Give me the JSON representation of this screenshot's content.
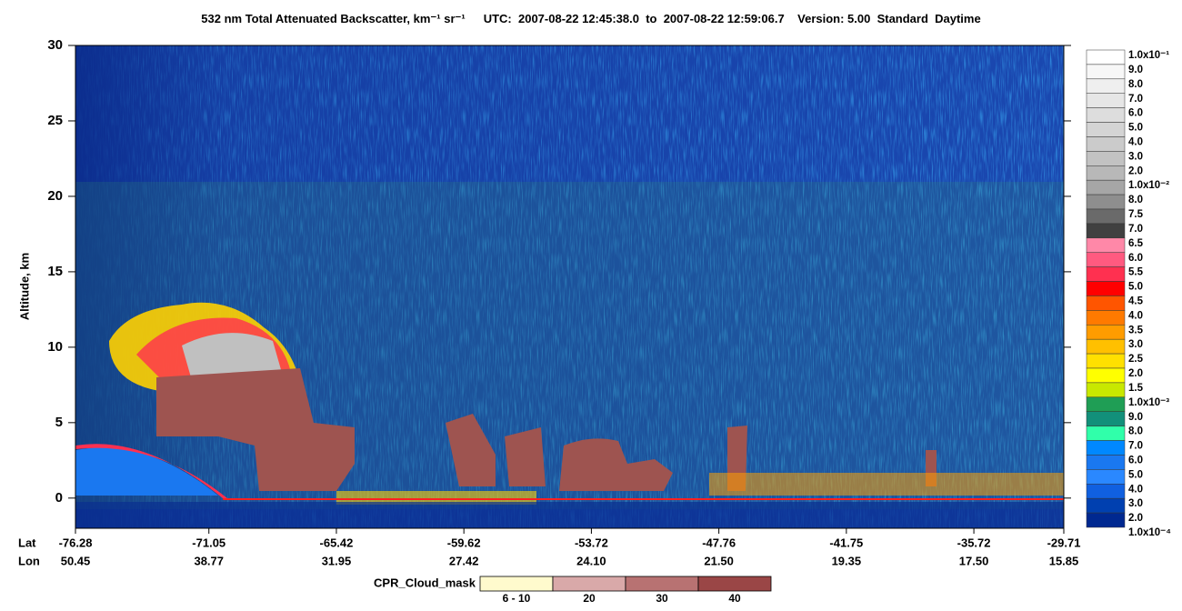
{
  "chart_data": {
    "type": "curtain",
    "title": "532 nm Total Attenuated Backscatter, km⁻¹ sr⁻¹",
    "subtitle": "UTC:  2007-08-22 12:45:38.0  to  2007-08-22 12:59:06.7    Version: 5.00  Standard  Daytime",
    "ylabel": "Altitude, km",
    "ylim": [
      -2,
      30
    ],
    "yticks": [
      0,
      5,
      10,
      15,
      20,
      25,
      30
    ],
    "lat_label": "Lat",
    "lon_label": "Lon",
    "lat": [
      "-76.28",
      "-71.05",
      "-65.42",
      "-59.62",
      "-53.72",
      "-47.76",
      "-41.75",
      "-35.72",
      "-29.71"
    ],
    "lon": [
      "50.45",
      "38.77",
      "31.95",
      "27.42",
      "24.10",
      "21.50",
      "19.35",
      "17.50",
      "15.85"
    ],
    "colorbar_labels": [
      "1.0x10⁻¹",
      "9.0",
      "8.0",
      "7.0",
      "6.0",
      "5.0",
      "4.0",
      "3.0",
      "2.0",
      "1.0x10⁻²",
      "8.0",
      "7.5",
      "7.0",
      "6.5",
      "6.0",
      "5.5",
      "5.0",
      "4.5",
      "4.0",
      "3.5",
      "3.0",
      "2.5",
      "2.0",
      "1.5",
      "1.0x10⁻³",
      "9.0",
      "8.0",
      "7.0",
      "6.0",
      "5.0",
      "4.0",
      "3.0",
      "2.0",
      "1.0x10⁻⁴"
    ],
    "colorbar_colors": [
      "#ffffff",
      "#f7f7f7",
      "#efefef",
      "#e6e6e6",
      "#dddddd",
      "#d4d4d4",
      "#cbcbcb",
      "#c2c2c2",
      "#b8b8b8",
      "#a6a6a6",
      "#8e8e8e",
      "#6a6a6a",
      "#404040",
      "#ff88a8",
      "#ff5a80",
      "#ff3050",
      "#ff0000",
      "#ff5500",
      "#ff7a00",
      "#ff9c00",
      "#ffc000",
      "#ffe000",
      "#ffff00",
      "#c8e800",
      "#1f9e55",
      "#12907a",
      "#30ffaa",
      "#0088ff",
      "#1a78f0",
      "#2a88ff",
      "#1060e0",
      "#0040b0",
      "#002890"
    ],
    "mask_label": "CPR_Cloud_mask",
    "mask_labels": [
      "6 - 10",
      "20",
      "30",
      "40"
    ],
    "mask_colors": [
      "#fffacd",
      "#d9a9a9",
      "#b87272",
      "#9a4646"
    ]
  }
}
